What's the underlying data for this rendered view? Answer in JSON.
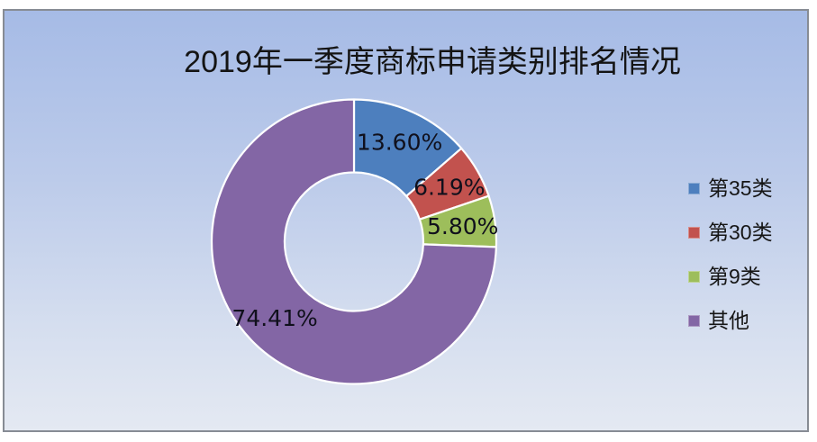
{
  "frame": {
    "border_color": "#878c94",
    "background_top": "#a6bbe6",
    "background_bottom": "#e4e9f2"
  },
  "chart_data": {
    "type": "pie",
    "variant": "donut",
    "title": "2019年一季度商标申请类别排名情况",
    "categories": [
      "第35类",
      "第30类",
      "第9类",
      "其他"
    ],
    "values": [
      13.6,
      6.19,
      5.8,
      74.41
    ],
    "data_labels": [
      "13.60%",
      "6.19%",
      "5.80%",
      "74.41%"
    ],
    "colors": [
      "#4d7fbe",
      "#c2524e",
      "#9dbe5b",
      "#8366a5"
    ],
    "segment_stroke_color": "#ffffff",
    "data_label_color": "#10101c",
    "title_color": "#141414",
    "legend_position": "right",
    "start_angle_deg": 0,
    "direction": "clockwise",
    "hole_ratio": 0.49
  }
}
